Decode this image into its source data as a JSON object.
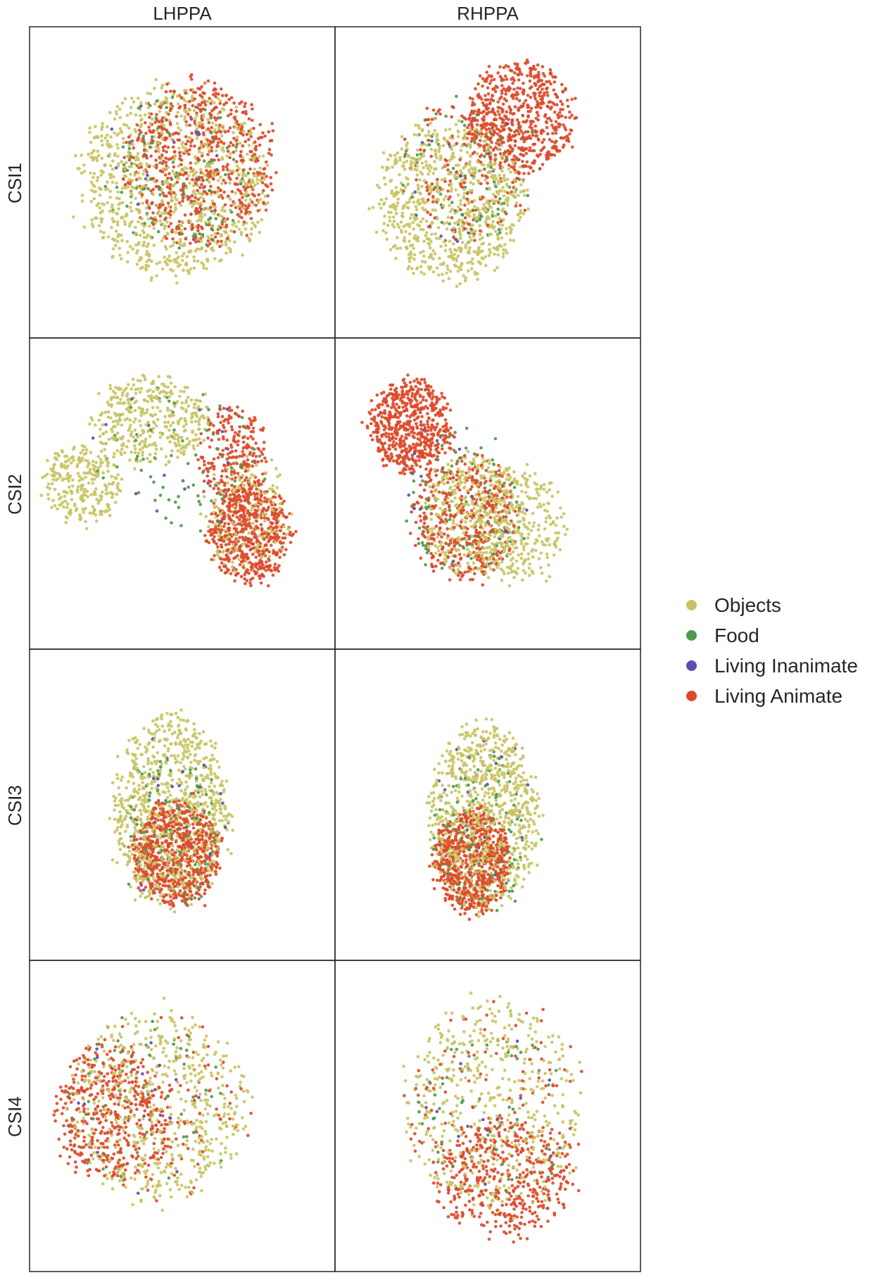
{
  "chart_data": {
    "type": "scatter",
    "columns": [
      "LHPPA",
      "RHPPA"
    ],
    "rows": [
      "CSI1",
      "CSI2",
      "CSI3",
      "CSI4"
    ],
    "legend_placement": "right",
    "grid": false,
    "categories": [
      {
        "name": "Objects",
        "color": "#c9c463"
      },
      {
        "name": "Food",
        "color": "#4c9a4c"
      },
      {
        "name": "Living Inanimate",
        "color": "#5a4fb0"
      },
      {
        "name": "Living Animate",
        "color": "#dc4a2a"
      }
    ],
    "panels": [
      {
        "row": "CSI1",
        "column": "LHPPA",
        "clusters": [
          {
            "category": "Objects",
            "center": [
              0.47,
              0.49
            ],
            "radius": [
              0.33,
              0.33
            ],
            "count": 900
          },
          {
            "category": "Living Animate",
            "center": [
              0.56,
              0.44
            ],
            "radius": [
              0.26,
              0.28
            ],
            "count": 650
          },
          {
            "category": "Food",
            "center": [
              0.48,
              0.47
            ],
            "radius": [
              0.26,
              0.28
            ],
            "count": 110
          },
          {
            "category": "Living Inanimate",
            "center": [
              0.48,
              0.48
            ],
            "radius": [
              0.26,
              0.28
            ],
            "count": 25
          }
        ]
      },
      {
        "row": "CSI1",
        "column": "RHPPA",
        "clusters": [
          {
            "category": "Objects",
            "center": [
              0.38,
              0.56
            ],
            "radius": [
              0.26,
              0.27
            ],
            "count": 780
          },
          {
            "category": "Living Animate",
            "center": [
              0.6,
              0.29
            ],
            "radius": [
              0.19,
              0.19
            ],
            "count": 600
          },
          {
            "category": "Living Animate",
            "center": [
              0.44,
              0.45
            ],
            "radius": [
              0.22,
              0.24
            ],
            "count": 180
          },
          {
            "category": "Food",
            "center": [
              0.44,
              0.47
            ],
            "radius": [
              0.24,
              0.26
            ],
            "count": 90
          },
          {
            "category": "Living Inanimate",
            "center": [
              0.44,
              0.48
            ],
            "radius": [
              0.22,
              0.24
            ],
            "count": 20
          }
        ]
      },
      {
        "row": "CSI2",
        "column": "LHPPA",
        "clusters": [
          {
            "category": "Objects",
            "center": [
              0.4,
              0.26
            ],
            "radius": [
              0.2,
              0.15
            ],
            "count": 380
          },
          {
            "category": "Objects",
            "center": [
              0.17,
              0.47
            ],
            "radius": [
              0.14,
              0.13
            ],
            "count": 260
          },
          {
            "category": "Living Animate",
            "center": [
              0.67,
              0.38
            ],
            "radius": [
              0.12,
              0.16
            ],
            "count": 240
          },
          {
            "category": "Living Animate",
            "center": [
              0.72,
              0.63
            ],
            "radius": [
              0.14,
              0.17
            ],
            "count": 560
          },
          {
            "category": "Objects",
            "center": [
              0.71,
              0.57
            ],
            "radius": [
              0.14,
              0.19
            ],
            "count": 200
          },
          {
            "category": "Food",
            "center": [
              0.5,
              0.4
            ],
            "radius": [
              0.3,
              0.25
            ],
            "count": 80
          },
          {
            "category": "Living Inanimate",
            "center": [
              0.45,
              0.4
            ],
            "radius": [
              0.3,
              0.25
            ],
            "count": 18
          }
        ]
      },
      {
        "row": "CSI2",
        "column": "RHPPA",
        "clusters": [
          {
            "category": "Living Animate",
            "center": [
              0.25,
              0.28
            ],
            "radius": [
              0.14,
              0.16
            ],
            "count": 600
          },
          {
            "category": "Objects",
            "center": [
              0.45,
              0.57
            ],
            "radius": [
              0.16,
              0.2
            ],
            "count": 400
          },
          {
            "category": "Objects",
            "center": [
              0.6,
              0.6
            ],
            "radius": [
              0.16,
              0.2
            ],
            "count": 280
          },
          {
            "category": "Living Animate",
            "center": [
              0.42,
              0.58
            ],
            "radius": [
              0.18,
              0.22
            ],
            "count": 420
          },
          {
            "category": "Food",
            "center": [
              0.42,
              0.52
            ],
            "radius": [
              0.22,
              0.27
            ],
            "count": 90
          },
          {
            "category": "Living Inanimate",
            "center": [
              0.42,
              0.5
            ],
            "radius": [
              0.22,
              0.27
            ],
            "count": 20
          }
        ]
      },
      {
        "row": "CSI3",
        "column": "LHPPA",
        "clusters": [
          {
            "category": "Objects",
            "center": [
              0.46,
              0.52
            ],
            "radius": [
              0.2,
              0.33
            ],
            "count": 900
          },
          {
            "category": "Living Animate",
            "center": [
              0.48,
              0.65
            ],
            "radius": [
              0.15,
              0.18
            ],
            "count": 700
          },
          {
            "category": "Food",
            "center": [
              0.46,
              0.58
            ],
            "radius": [
              0.18,
              0.28
            ],
            "count": 120
          },
          {
            "category": "Living Inanimate",
            "center": [
              0.46,
              0.55
            ],
            "radius": [
              0.2,
              0.3
            ],
            "count": 25
          }
        ]
      },
      {
        "row": "CSI3",
        "column": "RHPPA",
        "clusters": [
          {
            "category": "Objects",
            "center": [
              0.49,
              0.53
            ],
            "radius": [
              0.19,
              0.32
            ],
            "count": 900
          },
          {
            "category": "Living Animate",
            "center": [
              0.45,
              0.68
            ],
            "radius": [
              0.13,
              0.18
            ],
            "count": 700
          },
          {
            "category": "Food",
            "center": [
              0.49,
              0.58
            ],
            "radius": [
              0.18,
              0.28
            ],
            "count": 110
          },
          {
            "category": "Living Inanimate",
            "center": [
              0.49,
              0.55
            ],
            "radius": [
              0.19,
              0.3
            ],
            "count": 22
          }
        ]
      },
      {
        "row": "CSI4",
        "column": "LHPPA",
        "clusters": [
          {
            "category": "Objects",
            "center": [
              0.42,
              0.47
            ],
            "radius": [
              0.31,
              0.33
            ],
            "count": 560
          },
          {
            "category": "Living Animate",
            "center": [
              0.27,
              0.5
            ],
            "radius": [
              0.2,
              0.24
            ],
            "count": 420
          },
          {
            "category": "Living Animate",
            "center": [
              0.42,
              0.47
            ],
            "radius": [
              0.31,
              0.33
            ],
            "count": 120
          },
          {
            "category": "Food",
            "center": [
              0.38,
              0.48
            ],
            "radius": [
              0.28,
              0.3
            ],
            "count": 60
          },
          {
            "category": "Living Inanimate",
            "center": [
              0.38,
              0.48
            ],
            "radius": [
              0.28,
              0.3
            ],
            "count": 18
          }
        ]
      },
      {
        "row": "CSI4",
        "column": "RHPPA",
        "clusters": [
          {
            "category": "Objects",
            "center": [
              0.52,
              0.47
            ],
            "radius": [
              0.32,
              0.37
            ],
            "count": 500
          },
          {
            "category": "Living Animate",
            "center": [
              0.55,
              0.7
            ],
            "radius": [
              0.24,
              0.2
            ],
            "count": 440
          },
          {
            "category": "Living Animate",
            "center": [
              0.52,
              0.47
            ],
            "radius": [
              0.32,
              0.37
            ],
            "count": 120
          },
          {
            "category": "Food",
            "center": [
              0.52,
              0.5
            ],
            "radius": [
              0.28,
              0.32
            ],
            "count": 55
          },
          {
            "category": "Living Inanimate",
            "center": [
              0.52,
              0.5
            ],
            "radius": [
              0.28,
              0.32
            ],
            "count": 15
          }
        ]
      }
    ]
  }
}
